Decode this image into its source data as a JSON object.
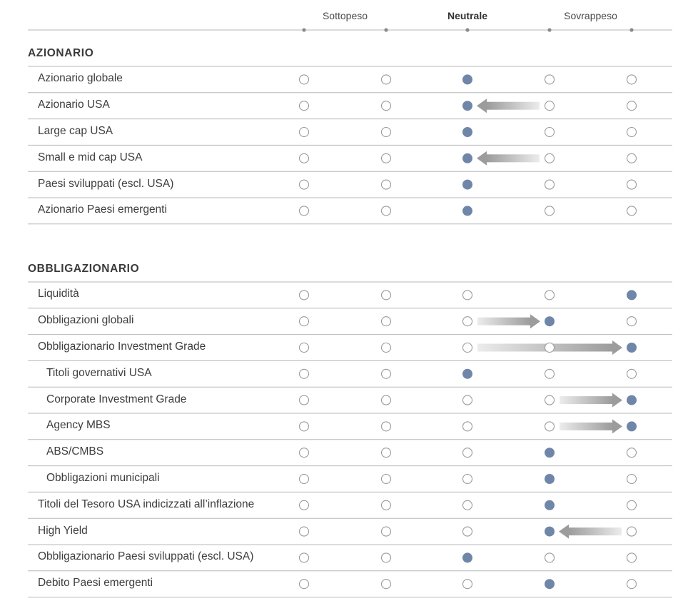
{
  "header": {
    "labels": [
      {
        "text": "Sottopeso",
        "col": 0.5,
        "bold": false
      },
      {
        "text": "Neutrale",
        "col": 2,
        "bold": true
      },
      {
        "text": "Sovrappeso",
        "col": 3.5,
        "bold": false
      }
    ]
  },
  "colors": {
    "filled_dot": "#6f86a8",
    "empty_dot_stroke": "#9a9a9a",
    "line": "#b8b8b8",
    "arrow_light": "#ececec",
    "arrow_dark": "#9c9c9c"
  },
  "chart_data": {
    "type": "table",
    "scale_positions": 5,
    "sections": [
      {
        "title": "AZIONARIO",
        "rows": [
          {
            "label": "Azionario globale",
            "indent": 0,
            "position": 2,
            "previous": null
          },
          {
            "label": "Azionario USA",
            "indent": 0,
            "position": 2,
            "previous": 3
          },
          {
            "label": "Large cap USA",
            "indent": 0,
            "position": 2,
            "previous": null
          },
          {
            "label": "Small e mid cap USA",
            "indent": 0,
            "position": 2,
            "previous": 3
          },
          {
            "label": "Paesi sviluppati (escl. USA)",
            "indent": 0,
            "position": 2,
            "previous": null
          },
          {
            "label": "Azionario Paesi emergenti",
            "indent": 0,
            "position": 2,
            "previous": null
          }
        ]
      },
      {
        "title": "OBBLIGAZIONARIO",
        "rows": [
          {
            "label": "Liquidità",
            "indent": 0,
            "position": 4,
            "previous": null
          },
          {
            "label": "Obbligazioni globali",
            "indent": 0,
            "position": 3,
            "previous": 2
          },
          {
            "label": "Obbligazionario Investment Grade",
            "indent": 0,
            "position": 4,
            "previous": 2
          },
          {
            "label": "Titoli governativi USA",
            "indent": 1,
            "position": 2,
            "previous": null
          },
          {
            "label": "Corporate Investment Grade",
            "indent": 1,
            "position": 4,
            "previous": 3
          },
          {
            "label": "Agency MBS",
            "indent": 1,
            "position": 4,
            "previous": 3
          },
          {
            "label": "ABS/CMBS",
            "indent": 1,
            "position": 3,
            "previous": null
          },
          {
            "label": "Obbligazioni municipali",
            "indent": 1,
            "position": 3,
            "previous": null
          },
          {
            "label": "Titoli del Tesoro USA indicizzati all’inflazione",
            "indent": 0,
            "position": 3,
            "previous": null
          },
          {
            "label": "High Yield",
            "indent": 0,
            "position": 3,
            "previous": 4
          },
          {
            "label": "Obbligazionario Paesi sviluppati (escl. USA)",
            "indent": 0,
            "position": 2,
            "previous": null
          },
          {
            "label": "Debito Paesi emergenti",
            "indent": 0,
            "position": 3,
            "previous": null
          }
        ]
      }
    ]
  }
}
